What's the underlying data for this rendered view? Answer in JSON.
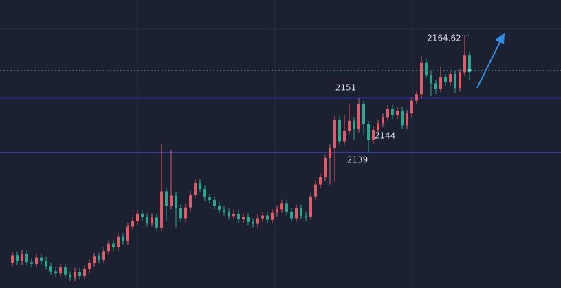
{
  "chart_data": {
    "type": "candlestick",
    "ylim": [
      2109.3,
      2172.5
    ],
    "up_color": "#e25a68",
    "down_color": "#2aa78f",
    "levels": [
      2151,
      2139
    ],
    "level_color": "#4d4fc4",
    "annotations": [
      "2164.62",
      "2151",
      "2144",
      "2139"
    ],
    "candles": [
      [
        2114.8,
        2117.3,
        2114.0,
        2116.5
      ],
      [
        2116.5,
        2117.3,
        2114.4,
        2115.2
      ],
      [
        2115.2,
        2117.6,
        2114.4,
        2116.8
      ],
      [
        2116.8,
        2117.6,
        2114.2,
        2115.0
      ],
      [
        2115.0,
        2115.8,
        2113.8,
        2114.6
      ],
      [
        2114.6,
        2116.8,
        2113.8,
        2116.0
      ],
      [
        2116.0,
        2116.8,
        2114.5,
        2115.3
      ],
      [
        2115.3,
        2116.1,
        2113.3,
        2114.1
      ],
      [
        2114.1,
        2114.9,
        2112.2,
        2113.0
      ],
      [
        2113.0,
        2113.8,
        2111.8,
        2112.6
      ],
      [
        2112.6,
        2114.6,
        2111.8,
        2113.8
      ],
      [
        2113.8,
        2114.6,
        2111.4,
        2112.2
      ],
      [
        2112.2,
        2113.0,
        2110.8,
        2111.6
      ],
      [
        2111.6,
        2113.7,
        2110.8,
        2112.9
      ],
      [
        2112.9,
        2113.7,
        2111.2,
        2112.0
      ],
      [
        2112.0,
        2114.2,
        2111.2,
        2113.4
      ],
      [
        2113.4,
        2115.6,
        2112.6,
        2114.8
      ],
      [
        2114.8,
        2117.0,
        2114.0,
        2116.2
      ],
      [
        2116.2,
        2117.0,
        2114.7,
        2115.5
      ],
      [
        2115.5,
        2118.2,
        2114.7,
        2117.4
      ],
      [
        2117.4,
        2119.8,
        2116.6,
        2119.0
      ],
      [
        2119.0,
        2119.8,
        2117.4,
        2118.2
      ],
      [
        2118.2,
        2121.3,
        2117.4,
        2120.5
      ],
      [
        2120.5,
        2121.3,
        2118.8,
        2119.6
      ],
      [
        2119.6,
        2123.6,
        2118.8,
        2122.8
      ],
      [
        2122.8,
        2124.8,
        2122.0,
        2124.0
      ],
      [
        2124.0,
        2126.4,
        2123.2,
        2125.6
      ],
      [
        2125.6,
        2126.4,
        2124.1,
        2124.9
      ],
      [
        2124.9,
        2125.7,
        2122.8,
        2123.6
      ],
      [
        2123.6,
        2125.6,
        2122.8,
        2124.8
      ],
      [
        2124.8,
        2125.6,
        2121.8,
        2122.6
      ],
      [
        2122.6,
        2141.0,
        2121.8,
        2130.5
      ],
      [
        2130.5,
        2131.3,
        2124.0,
        2127.4
      ],
      [
        2127.4,
        2139.6,
        2126.6,
        2129.6
      ],
      [
        2129.6,
        2130.4,
        2122.6,
        2126.8
      ],
      [
        2126.8,
        2127.6,
        2123.8,
        2124.6
      ],
      [
        2124.6,
        2127.8,
        2123.8,
        2127.0
      ],
      [
        2127.0,
        2130.6,
        2126.2,
        2129.8
      ],
      [
        2129.8,
        2133.2,
        2129.0,
        2132.4
      ],
      [
        2132.4,
        2133.2,
        2130.2,
        2131.0
      ],
      [
        2131.0,
        2131.8,
        2128.4,
        2129.2
      ],
      [
        2129.2,
        2130.0,
        2127.8,
        2128.6
      ],
      [
        2128.6,
        2129.4,
        2126.6,
        2127.4
      ],
      [
        2127.4,
        2128.2,
        2125.7,
        2126.5
      ],
      [
        2126.5,
        2127.3,
        2125.2,
        2126.0
      ],
      [
        2126.0,
        2126.8,
        2124.3,
        2125.1
      ],
      [
        2125.1,
        2126.4,
        2124.3,
        2125.6
      ],
      [
        2125.6,
        2126.4,
        2123.6,
        2124.4
      ],
      [
        2124.4,
        2125.7,
        2123.6,
        2124.9
      ],
      [
        2124.9,
        2125.7,
        2123.0,
        2123.8
      ],
      [
        2123.8,
        2124.6,
        2122.6,
        2123.4
      ],
      [
        2123.4,
        2125.4,
        2122.6,
        2124.6
      ],
      [
        2124.6,
        2126.0,
        2123.8,
        2125.2
      ],
      [
        2125.2,
        2126.0,
        2123.5,
        2124.3
      ],
      [
        2124.3,
        2126.6,
        2123.5,
        2125.8
      ],
      [
        2125.8,
        2127.4,
        2125.0,
        2126.6
      ],
      [
        2126.6,
        2128.6,
        2125.8,
        2127.8
      ],
      [
        2127.8,
        2128.6,
        2125.2,
        2126.0
      ],
      [
        2126.0,
        2126.8,
        2123.8,
        2124.6
      ],
      [
        2124.6,
        2127.6,
        2123.8,
        2126.8
      ],
      [
        2126.8,
        2127.6,
        2124.4,
        2125.2
      ],
      [
        2125.2,
        2126.0,
        2124.0,
        2125.0
      ],
      [
        2125.0,
        2130.2,
        2124.2,
        2129.4
      ],
      [
        2129.4,
        2132.8,
        2128.6,
        2132.0
      ],
      [
        2132.0,
        2134.4,
        2131.2,
        2133.6
      ],
      [
        2133.6,
        2138.6,
        2132.8,
        2137.8
      ],
      [
        2137.8,
        2140.8,
        2132.0,
        2140.0
      ],
      [
        2140.0,
        2147.0,
        2132.6,
        2146.2
      ],
      [
        2146.2,
        2147.0,
        2140.7,
        2141.5
      ],
      [
        2141.5,
        2147.2,
        2140.7,
        2143.8
      ],
      [
        2143.8,
        2149.8,
        2143.0,
        2146.0
      ],
      [
        2146.0,
        2146.8,
        2141.8,
        2144.2
      ],
      [
        2144.2,
        2151.0,
        2143.4,
        2149.6
      ],
      [
        2149.6,
        2150.4,
        2143.0,
        2145.2
      ],
      [
        2145.2,
        2146.0,
        2139.0,
        2141.8
      ],
      [
        2141.8,
        2144.8,
        2141.0,
        2144.0
      ],
      [
        2144.0,
        2146.2,
        2143.2,
        2145.4
      ],
      [
        2145.4,
        2147.6,
        2144.6,
        2146.8
      ],
      [
        2146.8,
        2149.4,
        2146.0,
        2148.6
      ],
      [
        2148.6,
        2149.4,
        2146.4,
        2147.2
      ],
      [
        2147.2,
        2149.0,
        2146.4,
        2148.2
      ],
      [
        2148.2,
        2149.0,
        2144.2,
        2145.0
      ],
      [
        2145.0,
        2148.4,
        2144.2,
        2147.6
      ],
      [
        2147.6,
        2151.2,
        2146.8,
        2150.4
      ],
      [
        2150.4,
        2152.6,
        2149.6,
        2151.8
      ],
      [
        2151.8,
        2160.2,
        2150.8,
        2158.8
      ],
      [
        2158.8,
        2159.6,
        2155.2,
        2156.0
      ],
      [
        2156.0,
        2156.8,
        2151.4,
        2154.2
      ],
      [
        2154.2,
        2155.0,
        2151.8,
        2153.0
      ],
      [
        2153.0,
        2157.8,
        2152.2,
        2155.6
      ],
      [
        2155.6,
        2156.4,
        2153.6,
        2154.4
      ],
      [
        2154.4,
        2157.0,
        2153.6,
        2156.2
      ],
      [
        2156.2,
        2157.0,
        2152.0,
        2153.2
      ],
      [
        2153.2,
        2157.4,
        2152.4,
        2156.6
      ],
      [
        2156.6,
        2164.62,
        2155.8,
        2160.4
      ],
      [
        2160.4,
        2161.2,
        2155.0,
        2157.0
      ]
    ]
  }
}
